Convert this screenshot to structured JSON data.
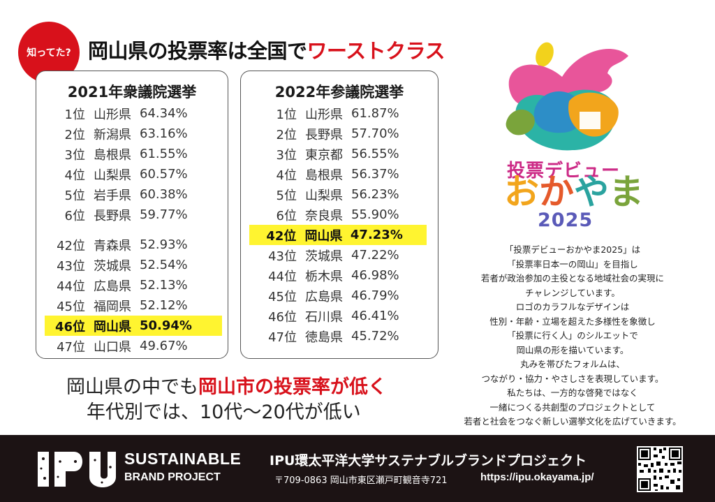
{
  "header": {
    "badge": "知ってた?",
    "headline_main": "岡山県の投票率は全国で",
    "headline_emph": "ワーストクラス"
  },
  "election_2021": {
    "title": "2021年衆議院選挙",
    "rows": [
      {
        "rank": "1位",
        "pref": "山形県",
        "pct": "64.34%"
      },
      {
        "rank": "2位",
        "pref": "新潟県",
        "pct": "63.16%"
      },
      {
        "rank": "3位",
        "pref": "島根県",
        "pct": "61.55%"
      },
      {
        "rank": "4位",
        "pref": "山梨県",
        "pct": "60.57%"
      },
      {
        "rank": "5位",
        "pref": "岩手県",
        "pct": "60.38%"
      },
      {
        "rank": "6位",
        "pref": "長野県",
        "pct": "59.77%"
      },
      {
        "rank": "42位",
        "pref": "青森県",
        "pct": "52.93%"
      },
      {
        "rank": "43位",
        "pref": "茨城県",
        "pct": "52.54%"
      },
      {
        "rank": "44位",
        "pref": "広島県",
        "pct": "52.13%"
      },
      {
        "rank": "45位",
        "pref": "福岡県",
        "pct": "52.12%"
      },
      {
        "rank": "46位",
        "pref": "岡山県",
        "pct": "50.94%"
      },
      {
        "rank": "47位",
        "pref": "山口県",
        "pct": "49.67%"
      }
    ]
  },
  "election_2022": {
    "title": "2022年参議院選挙",
    "rows": [
      {
        "rank": "1位",
        "pref": "山形県",
        "pct": "61.87%"
      },
      {
        "rank": "2位",
        "pref": "長野県",
        "pct": "57.70%"
      },
      {
        "rank": "3位",
        "pref": "東京都",
        "pct": "56.55%"
      },
      {
        "rank": "4位",
        "pref": "島根県",
        "pct": "56.37%"
      },
      {
        "rank": "5位",
        "pref": "山梨県",
        "pct": "56.23%"
      },
      {
        "rank": "6位",
        "pref": "奈良県",
        "pct": "55.90%"
      },
      {
        "rank": "42位",
        "pref": "岡山県",
        "pct": "47.23%"
      },
      {
        "rank": "43位",
        "pref": "茨城県",
        "pct": "47.22%"
      },
      {
        "rank": "44位",
        "pref": "栃木県",
        "pct": "46.98%"
      },
      {
        "rank": "45位",
        "pref": "広島県",
        "pct": "46.79%"
      },
      {
        "rank": "46位",
        "pref": "石川県",
        "pct": "46.41%"
      },
      {
        "rank": "47位",
        "pref": "徳島県",
        "pct": "45.72%"
      }
    ]
  },
  "message": {
    "line1_prefix": "岡山県の中でも",
    "line1_emph": "岡山市の投票率が低く",
    "line2": "年代別では、10代〜20代が低い"
  },
  "logo": {
    "line1": "投票デビュー",
    "line2_chars": [
      "お",
      "か",
      "や",
      "ま"
    ],
    "line3": "2025"
  },
  "description": [
    "「投票デビューおかやま2025」は",
    "「投票率日本一の岡山」を目指し",
    "若者が政治参加の主役となる地域社会の実現に",
    "チャレンジしています。",
    "ロゴのカラフルなデザインは",
    "性別・年齢・立場を超えた多様性を象徴し",
    "「投票に行く人」のシルエットで",
    "岡山県の形を描いています。",
    "丸みを帯びたフォルムは、",
    "つながり・協力・やさしさを表現しています。",
    "私たちは、一方的な啓発ではなく",
    "一緒につくる共創型のプロジェクトとして",
    "若者と社会をつなぐ新しい選挙文化を広げていきます。"
  ],
  "footer": {
    "ipu_logo_text": "IPU",
    "sustainable": "SUSTAINABLE",
    "brand_project": "BRAND PROJECT",
    "project_title": "IPU環太平洋大学サステナブルブランドプロジェクト",
    "address": "〒709-0863 岡山市東区瀬戸町観音寺721",
    "url": "https://ipu.okayama.jp/"
  },
  "colors": {
    "accent_red": "#d8111b",
    "highlight_yellow": "#fff430",
    "footer_bg": "#1c1314"
  },
  "icons": [
    "ipu-logo",
    "voting-debut-logo-mark",
    "qr-code"
  ]
}
